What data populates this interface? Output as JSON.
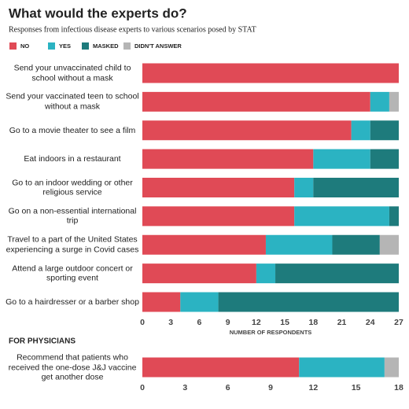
{
  "chart_data": [
    {
      "type": "stacked-bar-horizontal",
      "title": "What would the experts do?",
      "subtitle": "Responses from infectious disease experts to various scenarios posed by STAT",
      "categories": [
        "Send your unvaccinated child to school without a mask",
        "Send your vaccinated teen to school without a mask",
        "Go to a movie theater to see a film",
        "Eat indoors in a restaurant",
        "Go to an indoor wedding or other religious service",
        "Go on a non-essential international trip",
        "Travel to a part of the United States experiencing a surge in Covid cases",
        "Attend a large outdoor concert or sporting event",
        "Go to a hairdresser or a barber shop"
      ],
      "series": [
        {
          "name": "NO",
          "color": "#e04a56",
          "values": [
            27,
            24,
            22,
            18,
            16,
            16,
            13,
            12,
            4
          ]
        },
        {
          "name": "YES",
          "color": "#2bb3c2",
          "values": [
            0,
            2,
            2,
            6,
            2,
            10,
            7,
            2,
            4
          ]
        },
        {
          "name": "MASKED",
          "color": "#1e7b7c",
          "values": [
            0,
            0,
            3,
            3,
            9,
            1,
            5,
            13,
            19
          ]
        },
        {
          "name": "DIDN'T ANSWER",
          "color": "#b5b5b5",
          "values": [
            0,
            1,
            0,
            0,
            0,
            0,
            2,
            0,
            0
          ]
        }
      ],
      "xlim": [
        0,
        27
      ],
      "xticks": [
        0,
        3,
        6,
        9,
        12,
        15,
        18,
        21,
        24,
        27
      ],
      "xlabel": "NUMBER OF RESPONDENTS",
      "legend": "top-left"
    },
    {
      "type": "stacked-bar-horizontal",
      "title": "FOR PHYSICIANS",
      "categories": [
        "Recommend that patients who received the one-dose J&J vaccine get another dose"
      ],
      "series": [
        {
          "color": "#e04a56",
          "values": [
            11
          ]
        },
        {
          "color": "#2bb3c2",
          "values": [
            6
          ]
        },
        {
          "color": "#b5b5b5",
          "values": [
            1
          ]
        }
      ],
      "xlim": [
        0,
        18
      ],
      "xticks": [
        0,
        3,
        6,
        9,
        12,
        15,
        18
      ]
    }
  ]
}
